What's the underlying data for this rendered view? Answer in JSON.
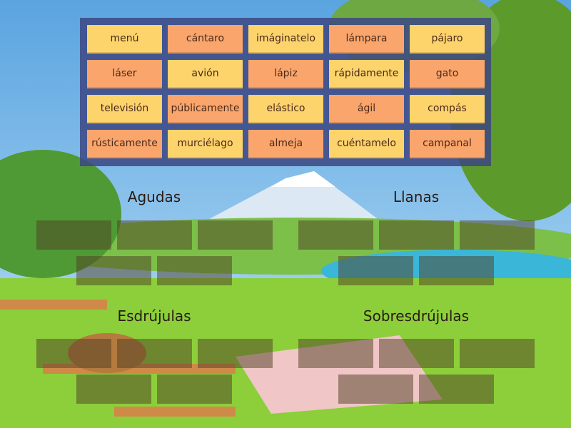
{
  "colors": {
    "tile_yellow": "#fdd36c",
    "tile_orange": "#f9a56c",
    "panel": "#3c4682",
    "slot": "#503e23"
  },
  "tiles": [
    {
      "label": "menú",
      "color": "yellow"
    },
    {
      "label": "cántaro",
      "color": "orange"
    },
    {
      "label": "imáginatelo",
      "color": "yellow"
    },
    {
      "label": "lámpara",
      "color": "orange"
    },
    {
      "label": "pájaro",
      "color": "yellow"
    },
    {
      "label": "láser",
      "color": "orange"
    },
    {
      "label": "avión",
      "color": "yellow"
    },
    {
      "label": "lápiz",
      "color": "orange"
    },
    {
      "label": "rápidamente",
      "color": "yellow"
    },
    {
      "label": "gato",
      "color": "orange"
    },
    {
      "label": "televisión",
      "color": "yellow"
    },
    {
      "label": "públicamente",
      "color": "orange"
    },
    {
      "label": "elástico",
      "color": "yellow"
    },
    {
      "label": "ágil",
      "color": "orange"
    },
    {
      "label": "compás",
      "color": "yellow"
    },
    {
      "label": "rústicamente",
      "color": "orange"
    },
    {
      "label": "murciélago",
      "color": "yellow"
    },
    {
      "label": "almeja",
      "color": "orange"
    },
    {
      "label": "cuéntamelo",
      "color": "yellow"
    },
    {
      "label": "campanal",
      "color": "orange"
    }
  ],
  "groups": [
    {
      "title": "Agudas",
      "slots": 5
    },
    {
      "title": "Llanas",
      "slots": 5
    },
    {
      "title": "Esdrújulas",
      "slots": 5
    },
    {
      "title": "Sobresdrújulas",
      "slots": 5
    }
  ]
}
